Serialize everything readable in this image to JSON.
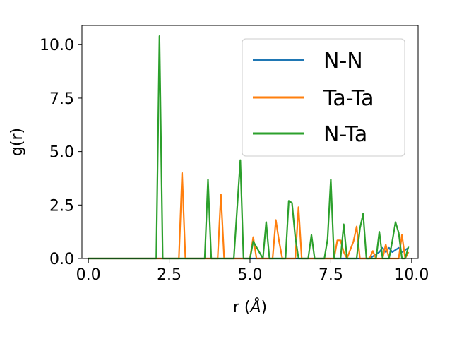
{
  "chart_data": {
    "type": "line",
    "xlabel_prefix": "r (",
    "xlabel_unit": "Å",
    "xlabel_suffix": ")",
    "ylabel": "g(r)",
    "xlim": [
      -0.2,
      10.2
    ],
    "ylim": [
      0,
      10.9
    ],
    "xticks": [
      0.0,
      2.5,
      5.0,
      7.5,
      10.0
    ],
    "xtick_labels": [
      "0.0",
      "2.5",
      "5.0",
      "7.5",
      "10.0"
    ],
    "yticks": [
      0.0,
      2.5,
      5.0,
      7.5,
      10.0
    ],
    "ytick_labels": [
      "0.0",
      "2.5",
      "5.0",
      "7.5",
      "10.0"
    ],
    "grid": false,
    "legend_position": "upper right",
    "series": [
      {
        "name": "N-N",
        "color": "#1f77b4",
        "x": [
          0.0,
          8.7,
          8.8,
          8.9,
          9.0,
          9.1,
          9.2,
          9.3,
          9.4,
          9.5,
          9.6,
          9.7,
          9.8,
          9.9
        ],
        "y": [
          0.0,
          0.0,
          0.1,
          0.2,
          0.3,
          0.5,
          0.3,
          0.5,
          0.3,
          0.4,
          0.5,
          0.3,
          0.4,
          0.5
        ]
      },
      {
        "name": "Ta-Ta",
        "color": "#ff7f0e",
        "x": [
          0.0,
          2.8,
          2.9,
          3.0,
          4.0,
          4.1,
          4.2,
          5.0,
          5.1,
          5.2,
          5.7,
          5.8,
          5.9,
          6.0,
          6.4,
          6.5,
          6.6,
          7.6,
          7.7,
          7.8,
          7.9,
          8.0,
          8.2,
          8.3,
          8.4,
          8.7,
          8.8,
          8.9,
          9.1,
          9.2,
          9.3,
          9.6,
          9.7,
          9.8,
          9.9
        ],
        "y": [
          0.0,
          0.0,
          4.0,
          0.0,
          0.0,
          3.0,
          0.0,
          0.0,
          1.0,
          0.0,
          0.0,
          1.8,
          0.8,
          0.0,
          0.0,
          2.4,
          0.0,
          0.0,
          0.85,
          0.85,
          0.3,
          0.0,
          0.8,
          1.5,
          0.0,
          0.0,
          0.35,
          0.0,
          0.0,
          0.65,
          0.0,
          0.0,
          1.1,
          0.0,
          0.3
        ]
      },
      {
        "name": "N-Ta",
        "color": "#2ca02c",
        "x": [
          0.0,
          2.1,
          2.2,
          2.3,
          3.6,
          3.7,
          3.8,
          4.5,
          4.6,
          4.7,
          4.8,
          5.0,
          5.1,
          5.4,
          5.5,
          5.6,
          6.1,
          6.2,
          6.3,
          6.4,
          6.5,
          6.8,
          6.9,
          7.0,
          7.3,
          7.4,
          7.5,
          7.6,
          7.8,
          7.9,
          8.0,
          8.3,
          8.4,
          8.5,
          8.6,
          8.9,
          9.0,
          9.1,
          9.3,
          9.4,
          9.5,
          9.6,
          9.7,
          9.8,
          9.9
        ],
        "y": [
          0.0,
          0.0,
          10.4,
          0.0,
          0.0,
          3.7,
          0.0,
          0.0,
          2.3,
          4.6,
          0.0,
          0.0,
          0.8,
          0.0,
          1.7,
          0.0,
          0.0,
          2.7,
          2.6,
          1.0,
          0.0,
          0.0,
          1.1,
          0.0,
          0.0,
          0.9,
          3.7,
          0.0,
          0.0,
          1.6,
          0.0,
          0.0,
          1.4,
          2.1,
          0.0,
          0.0,
          1.25,
          0.0,
          0.0,
          0.8,
          1.7,
          1.2,
          0.0,
          0.0,
          0.55
        ]
      }
    ]
  }
}
